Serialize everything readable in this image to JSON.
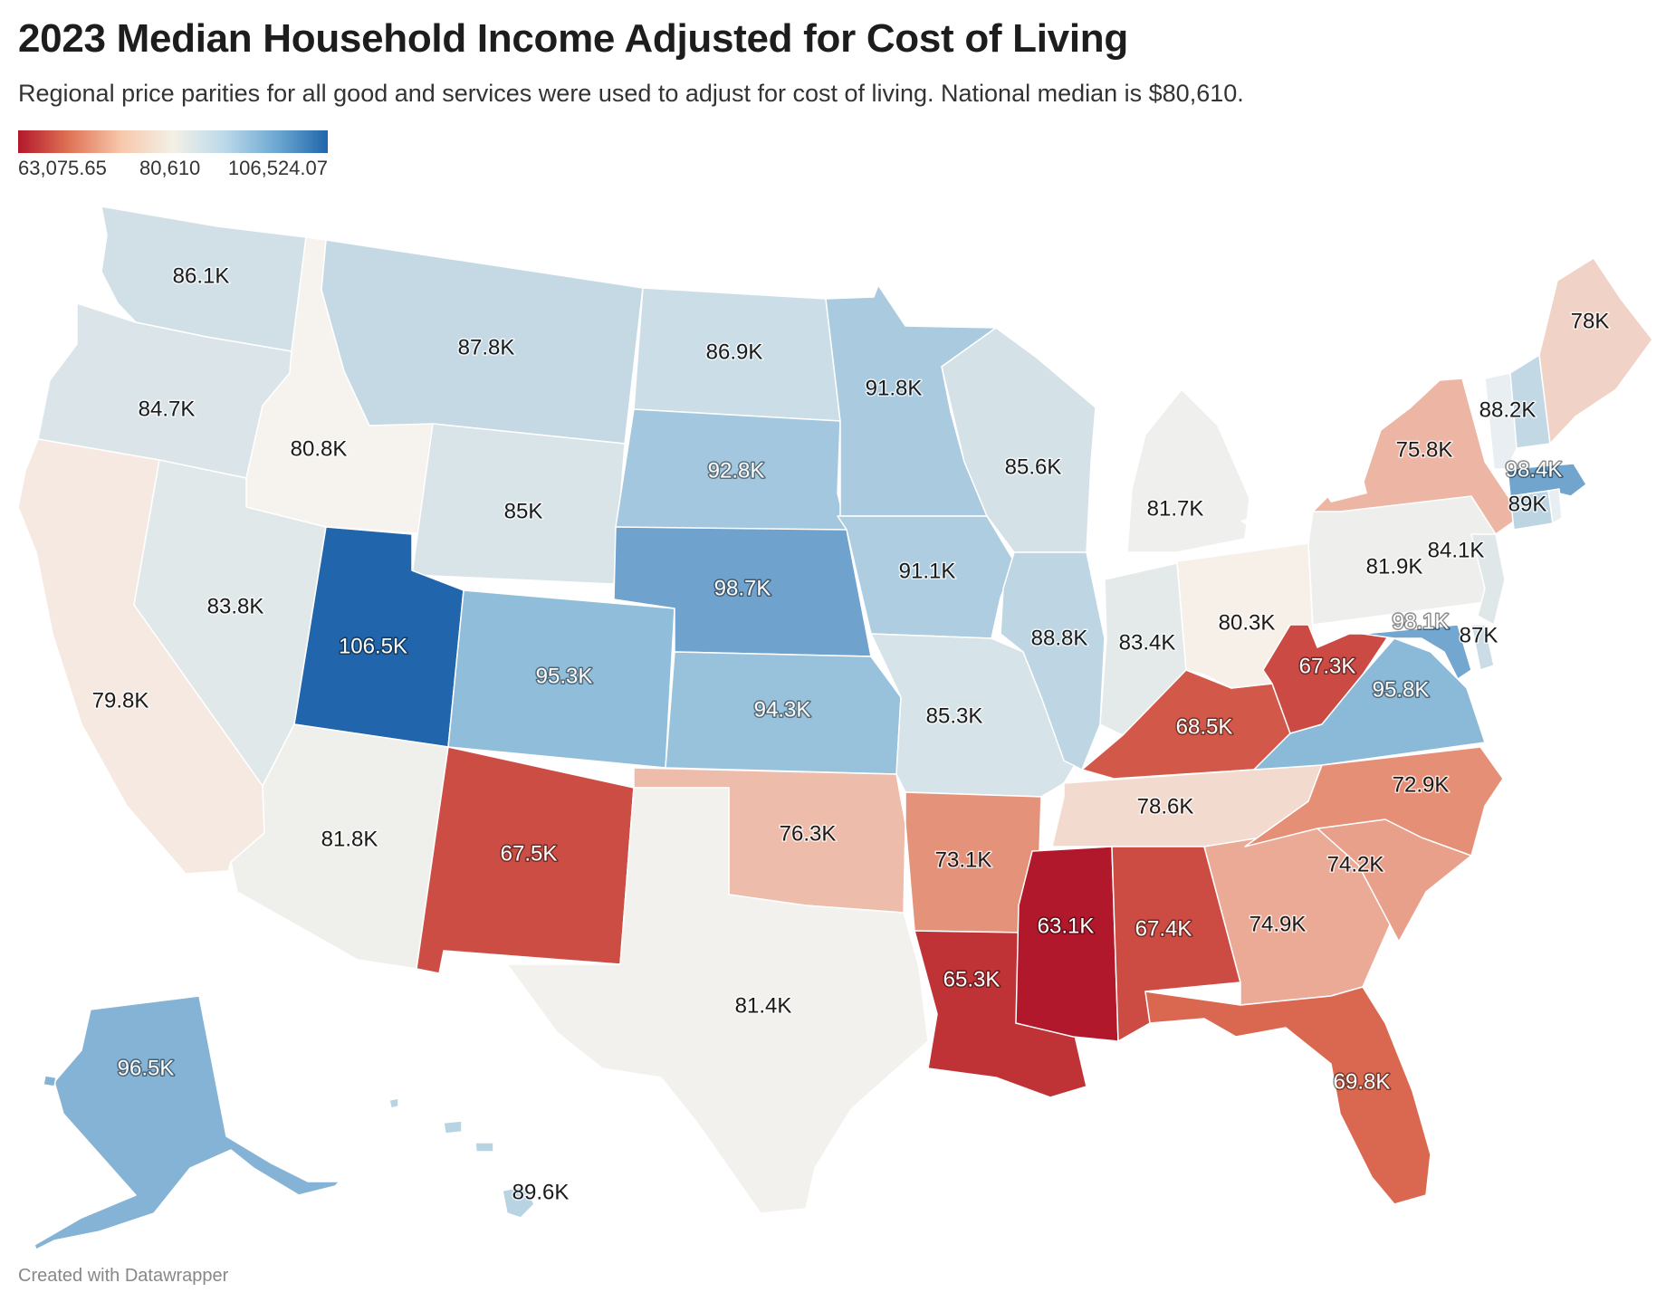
{
  "header": {
    "title": "2023 Median Household Income Adjusted for Cost of Living",
    "subtitle": "Regional price parities for all good and services were used to adjust for cost of living. National median is $80,610."
  },
  "legend": {
    "min_label": "63,075.65",
    "mid_label": "80,610",
    "max_label": "106,524.07",
    "colors": [
      "#b2182b",
      "#e07456",
      "#f7c8ac",
      "#f3f0e6",
      "#bcd9ea",
      "#6ea9d2",
      "#2166ac"
    ]
  },
  "footer": {
    "credit": "Created with Datawrapper"
  },
  "chart_data": {
    "type": "choropleth",
    "scale": {
      "min": 63075.65,
      "mid": 80610,
      "max": 106524.07
    },
    "states": [
      {
        "code": "WA",
        "label": "86.1K",
        "value": 86100
      },
      {
        "code": "OR",
        "label": "84.7K",
        "value": 84700
      },
      {
        "code": "CA",
        "label": "79.8K",
        "value": 79800
      },
      {
        "code": "ID",
        "label": "80.8K",
        "value": 80800
      },
      {
        "code": "NV",
        "label": "83.8K",
        "value": 83800
      },
      {
        "code": "MT",
        "label": "87.8K",
        "value": 87800
      },
      {
        "code": "WY",
        "label": "85K",
        "value": 85000
      },
      {
        "code": "UT",
        "label": "106.5K",
        "value": 106524.07
      },
      {
        "code": "AZ",
        "label": "81.8K",
        "value": 81800
      },
      {
        "code": "CO",
        "label": "95.3K",
        "value": 95300
      },
      {
        "code": "NM",
        "label": "67.5K",
        "value": 67500
      },
      {
        "code": "ND",
        "label": "86.9K",
        "value": 86900
      },
      {
        "code": "SD",
        "label": "92.8K",
        "value": 92800
      },
      {
        "code": "NE",
        "label": "98.7K",
        "value": 98700
      },
      {
        "code": "KS",
        "label": "94.3K",
        "value": 94300
      },
      {
        "code": "OK",
        "label": "76.3K",
        "value": 76300
      },
      {
        "code": "TX",
        "label": "81.4K",
        "value": 81400
      },
      {
        "code": "MN",
        "label": "91.8K",
        "value": 91800
      },
      {
        "code": "IA",
        "label": "91.1K",
        "value": 91100
      },
      {
        "code": "MO",
        "label": "85.3K",
        "value": 85300
      },
      {
        "code": "AR",
        "label": "73.1K",
        "value": 73100
      },
      {
        "code": "LA",
        "label": "65.3K",
        "value": 65300
      },
      {
        "code": "WI",
        "label": "85.6K",
        "value": 85600
      },
      {
        "code": "IL",
        "label": "88.8K",
        "value": 88800
      },
      {
        "code": "MS",
        "label": "63.1K",
        "value": 63075.65
      },
      {
        "code": "MI",
        "label": "81.7K",
        "value": 81700
      },
      {
        "code": "IN",
        "label": "83.4K",
        "value": 83400
      },
      {
        "code": "KY",
        "label": "68.5K",
        "value": 68500
      },
      {
        "code": "TN",
        "label": "78.6K",
        "value": 78600
      },
      {
        "code": "AL",
        "label": "67.4K",
        "value": 67400
      },
      {
        "code": "OH",
        "label": "80.3K",
        "value": 80300
      },
      {
        "code": "WV",
        "label": "67.3K",
        "value": 67300
      },
      {
        "code": "GA",
        "label": "74.9K",
        "value": 74900
      },
      {
        "code": "FL",
        "label": "69.8K",
        "value": 69800
      },
      {
        "code": "SC",
        "label": "74.2K",
        "value": 74200
      },
      {
        "code": "NC",
        "label": "72.9K",
        "value": 72900
      },
      {
        "code": "VA",
        "label": "95.8K",
        "value": 95800
      },
      {
        "code": "PA",
        "label": "81.9K",
        "value": 81900
      },
      {
        "code": "NY",
        "label": "75.8K",
        "value": 75800
      },
      {
        "code": "NJ",
        "label": "84.1K",
        "value": 84100
      },
      {
        "code": "MD",
        "label": "98.1K",
        "value": 98100
      },
      {
        "code": "DE",
        "label": "87K",
        "value": 87000
      },
      {
        "code": "CT",
        "label": "89K",
        "value": 89000
      },
      {
        "code": "MA",
        "label": "98.4K",
        "value": 98400
      },
      {
        "code": "VT",
        "label": "",
        "value": null
      },
      {
        "code": "NH",
        "label": "88.2K",
        "value": 88200
      },
      {
        "code": "ME",
        "label": "78K",
        "value": 78000
      },
      {
        "code": "RI",
        "label": "",
        "value": null
      },
      {
        "code": "AK",
        "label": "96.5K",
        "value": 96500
      },
      {
        "code": "HI",
        "label": "89.6K",
        "value": 89600
      }
    ]
  }
}
